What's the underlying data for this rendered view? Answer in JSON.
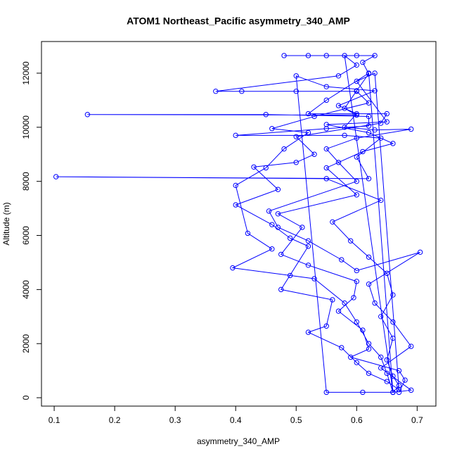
{
  "chart_data": {
    "type": "line",
    "title": "ATOM1 Northeast_Pacific asymmetry_340_AMP",
    "x_label": "asymmetry_340_AMP",
    "y_label": "Altitude (m)",
    "color": "#0000ff",
    "markers": true,
    "xlim": [
      0.079,
      0.731
    ],
    "ylim": [
      -310,
      13170
    ],
    "xticks": [
      0.1,
      0.2,
      0.3,
      0.4,
      0.5,
      0.6,
      0.7
    ],
    "yticks": [
      0,
      2000,
      4000,
      6000,
      8000,
      10000,
      12000
    ],
    "x": [
      0.48,
      0.52,
      0.55,
      0.6,
      0.63,
      0.61,
      0.62,
      0.6,
      0.58,
      0.6,
      0.155,
      0.45,
      0.62,
      0.62,
      0.55,
      0.4,
      0.58,
      0.64,
      0.6,
      0.62,
      0.103,
      0.55,
      0.64,
      0.56,
      0.59,
      0.62,
      0.65,
      0.66,
      0.64,
      0.66,
      0.65,
      0.66,
      0.67,
      0.66,
      0.58,
      0.6,
      0.57,
      0.367,
      0.41,
      0.5,
      0.6,
      0.62,
      0.53,
      0.46,
      0.52,
      0.48,
      0.45,
      0.4,
      0.42,
      0.46,
      0.395,
      0.49,
      0.53,
      0.58,
      0.6,
      0.62,
      0.64,
      0.65,
      0.66,
      0.61,
      0.55,
      0.5,
      0.55,
      0.63,
      0.57,
      0.6,
      0.58,
      0.63,
      0.69,
      0.6,
      0.55,
      0.57,
      0.6,
      0.455,
      0.47,
      0.52,
      0.575,
      0.6,
      0.705,
      0.62,
      0.63,
      0.66,
      0.69,
      0.64,
      0.69,
      0.66,
      0.62,
      0.55,
      0.52,
      0.65,
      0.64,
      0.5,
      0.53,
      0.5,
      0.43,
      0.47,
      0.4,
      0.46,
      0.49,
      0.52,
      0.475,
      0.56,
      0.55,
      0.52,
      0.575,
      0.6,
      0.62,
      0.65,
      0.67,
      0.63,
      0.6,
      0.65,
      0.55,
      0.62,
      0.66,
      0.61,
      0.55,
      0.6,
      0.47,
      0.51,
      0.475,
      0.52,
      0.6,
      0.595,
      0.57,
      0.61,
      0.62,
      0.59,
      0.67,
      0.68,
      0.67
    ],
    "values": [
      12650,
      12650,
      12650,
      12650,
      12650,
      12400,
      11980,
      11350,
      10700,
      10450,
      10470,
      10470,
      10400,
      10050,
      9950,
      9700,
      9700,
      9600,
      8900,
      8100,
      8170,
      8100,
      7300,
      6500,
      5800,
      5200,
      4600,
      3800,
      3000,
      2200,
      1400,
      800,
      450,
      200,
      12650,
      12300,
      11900,
      11330,
      11330,
      11330,
      11330,
      10900,
      10400,
      9950,
      9800,
      9200,
      8500,
      7850,
      6080,
      5500,
      4800,
      4520,
      4400,
      3500,
      2800,
      2000,
      1500,
      900,
      200,
      200,
      200,
      11900,
      11500,
      11350,
      10800,
      10500,
      10000,
      9900,
      9930,
      9600,
      9200,
      8700,
      8000,
      6900,
      6300,
      5800,
      5100,
      4700,
      5380,
      4200,
      3500,
      2800,
      1900,
      1100,
      280,
      200,
      12000,
      11000,
      10500,
      10500,
      10150,
      9650,
      9000,
      8700,
      8530,
      7700,
      7130,
      6400,
      5900,
      5600,
      4000,
      3620,
      2650,
      2420,
      1850,
      1300,
      900,
      600,
      300,
      12000,
      11700,
      10200,
      10100,
      9800,
      9400,
      9100,
      8500,
      7500,
      6800,
      6300,
      5300,
      4900,
      4300,
      3700,
      3200,
      2500,
      1800,
      1500,
      1000,
      650,
      200
    ]
  }
}
